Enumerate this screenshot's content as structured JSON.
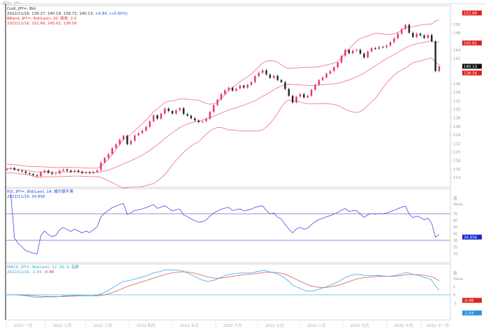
{
  "window_title": "报价: JPY=",
  "legends": {
    "candle": {
      "name": "Cndl, JPY=, Bid",
      "values": "2022/11/16, 139.27, 140.19, 138.72, 140.13,",
      "change": "+0.84, (+0.60%)"
    },
    "bband": {
      "name": "BBand, JPY=, Bid(Last), 20, 简单, 2.0",
      "values": "2022/11/16, 152.66, 145.61, 138.56"
    },
    "rsi": {
      "name": "RSI, JPY=, Bid(Last), 14, 威尔德平滑",
      "values": "2022/11/16, 34.856"
    },
    "macd": {
      "name": "MACD, JPY=, Bid(Last), 12, 26, 9, 指数",
      "values": "2022/11/16, -1.54,",
      "signal": "-0.48"
    }
  },
  "colors": {
    "up": "#e8307a",
    "down": "#222222",
    "band": "#f08080",
    "rsi": "#4a4ad8",
    "rsi_guide": "#6a6ad8",
    "macd": "#3aa8e8",
    "signal": "#e05a5a",
    "zero": "#40c0d8"
  },
  "chart_data": [
    {
      "type": "candlestick",
      "symbol": "JPY=",
      "ylim": [
        111.7,
        154.4
      ],
      "yticks": [
        114,
        116,
        118,
        120,
        122,
        124,
        126,
        128,
        130,
        132,
        134,
        136,
        142,
        144,
        148,
        150
      ],
      "badges": [
        {
          "value": "152.66",
          "price": 152.66,
          "color": "#e02020"
        },
        {
          "value": "145.61",
          "price": 145.61,
          "color": "#e02020"
        },
        {
          "value": "140.13",
          "price": 140.13,
          "color": "#111111"
        },
        {
          "value": "138.56",
          "price": 138.56,
          "color": "#e02020"
        }
      ],
      "bband": {
        "period": 20,
        "stddev": 2.0
      },
      "closes": [
        116.0,
        116.2,
        115.8,
        115.6,
        115.4,
        115.0,
        114.8,
        114.5,
        114.3,
        115.2,
        115.6,
        115.1,
        114.8,
        114.9,
        115.6,
        115.9,
        115.6,
        115.3,
        115.6,
        115.3,
        115.0,
        115.2,
        115.0,
        115.3,
        115.7,
        117.5,
        118.6,
        119.5,
        120.9,
        121.8,
        122.9,
        123.8,
        121.8,
        122.6,
        123.9,
        124.4,
        125.0,
        125.9,
        127.2,
        128.6,
        127.8,
        129.0,
        130.2,
        129.6,
        129.0,
        129.8,
        130.3,
        128.9,
        128.5,
        127.9,
        127.4,
        127.0,
        127.2,
        127.8,
        129.4,
        131.0,
        132.3,
        133.6,
        134.5,
        135.1,
        134.4,
        134.9,
        135.6,
        135.1,
        135.8,
        136.4,
        137.8,
        138.6,
        139.2,
        138.2,
        137.4,
        137.9,
        136.9,
        136.4,
        134.8,
        133.2,
        131.6,
        133.0,
        133.6,
        132.8,
        133.2,
        134.6,
        135.8,
        136.9,
        137.5,
        138.4,
        139.0,
        139.9,
        141.0,
        142.6,
        144.0,
        143.2,
        143.8,
        144.0,
        143.1,
        142.2,
        143.6,
        144.4,
        144.2,
        144.7,
        144.6,
        145.0,
        145.8,
        146.7,
        147.8,
        148.9,
        149.9,
        148.0,
        147.0,
        147.8,
        147.4,
        146.8,
        147.5,
        146.0,
        139.0,
        140.13
      ]
    },
    {
      "type": "line",
      "indicator": "RSI",
      "period": 14,
      "ylim": [
        0,
        100
      ],
      "yticks": [
        70,
        60,
        50,
        40,
        30,
        20,
        10
      ],
      "guides": [
        70,
        30
      ],
      "badge": {
        "value": "34.856",
        "color": "#1a2ad0"
      },
      "axis_label": "值",
      "axis_unit": "Value"
    },
    {
      "type": "line",
      "indicator": "MACD",
      "params": [
        12,
        26,
        9
      ],
      "yticks": [
        1,
        0,
        -1
      ],
      "badges": [
        {
          "value": "-0.48",
          "color": "#e02020"
        },
        {
          "value": "-1.54",
          "color": "#2a90e0"
        }
      ],
      "axis_label": "值",
      "axis_unit": "Value"
    }
  ],
  "x_axis": {
    "months": [
      "2022 一月",
      "2022 二月",
      "2022 三月",
      "2022 四月",
      "2022 五月",
      "2022 六月",
      "2022 七月",
      "2022 八月",
      "2022 九月",
      "2022 十月",
      "2022 十一月"
    ]
  }
}
